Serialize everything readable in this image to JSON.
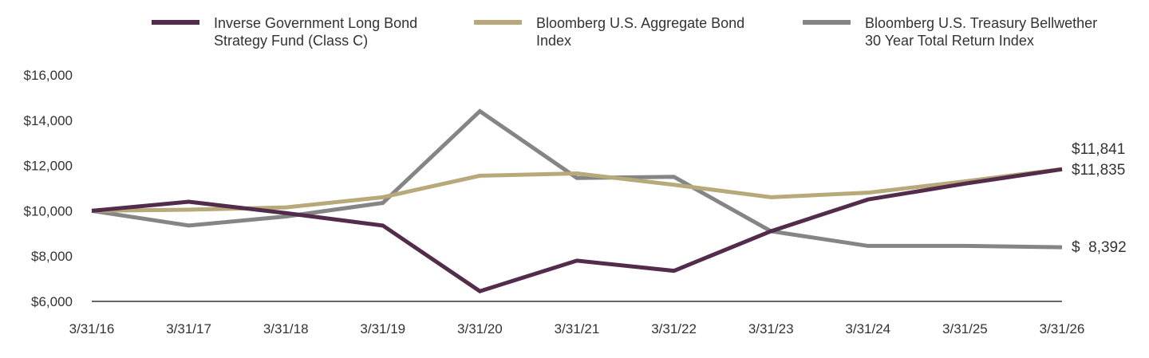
{
  "chart_data": {
    "type": "line",
    "x": [
      "3/31/16",
      "3/31/17",
      "3/31/18",
      "3/31/19",
      "3/31/20",
      "3/31/21",
      "3/31/22",
      "3/31/23",
      "3/31/24",
      "3/31/25",
      "3/31/26"
    ],
    "ylim": [
      6000,
      16000
    ],
    "yticks": [
      "$16,000",
      "$14,000",
      "$12,000",
      "$10,000",
      "$8,000",
      "$6,000"
    ],
    "ytick_values": [
      16000,
      14000,
      12000,
      10000,
      8000,
      6000
    ],
    "grid": false,
    "legend_position": "top",
    "series": [
      {
        "name": "Inverse Government Long Bond Strategy Fund (Class C)",
        "legend_lines": [
          "Inverse Government Long Bond",
          "Strategy Fund (Class C)"
        ],
        "color": "#532b4b",
        "values": [
          10000,
          10400,
          9900,
          9350,
          6450,
          7800,
          7350,
          9100,
          10500,
          11200,
          11835
        ],
        "end_label": "$11,835"
      },
      {
        "name": "Bloomberg U.S. Aggregate Bond Index",
        "legend_lines": [
          "Bloomberg U.S. Aggregate Bond",
          "Index"
        ],
        "color": "#b8a97a",
        "values": [
          10000,
          10050,
          10150,
          10600,
          11550,
          11650,
          11150,
          10600,
          10800,
          11300,
          11841
        ],
        "end_label": "$11,841"
      },
      {
        "name": "Bloomberg U.S. Treasury Bellwether 30 Year Total Return Index",
        "legend_lines": [
          "Bloomberg U.S. Treasury Bellwether",
          "30 Year Total Return Index"
        ],
        "color": "#858585",
        "values": [
          10000,
          9350,
          9750,
          10350,
          14400,
          11450,
          11500,
          9100,
          8450,
          8450,
          8392
        ],
        "end_label": "$  8,392"
      }
    ]
  }
}
